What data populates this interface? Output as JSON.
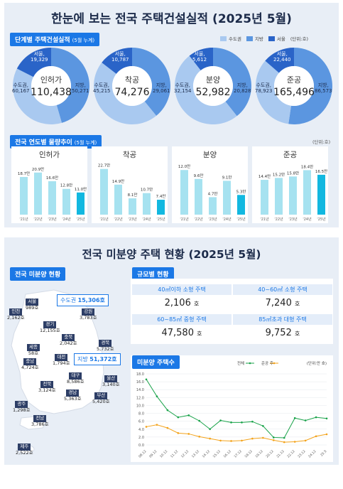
{
  "page": {
    "title": "한눈에 보는 전국 주택건설실적 (2025년 5월)",
    "section1": {
      "label": "단계별 주택건설실적",
      "note": "(5월 누계)"
    },
    "legend": [
      {
        "label": "수도권",
        "color": "#a9c9f0"
      },
      {
        "label": "지방",
        "color": "#5b96e0"
      },
      {
        "label": "서울",
        "color": "#2a64c8"
      }
    ],
    "unit1": "(단위:호)",
    "section2": {
      "label": "전국 연도별 물량추이",
      "note": "(5월 누계)"
    },
    "unit2": "(단위:호)",
    "subtitle": "전국 미분양 주택 현황 (2025년 5월)",
    "section3": {
      "label": "전국 미분양 현황"
    },
    "section4": {
      "label": "규모별 현황"
    },
    "section5": {
      "label": "미분양 주택수"
    }
  },
  "donuts": [
    {
      "name": "인허가",
      "total": "110,438",
      "metro_label": "수도권,",
      "metro": "60,167",
      "local_label": "지방,",
      "local": "50,271",
      "seoul_label": "서울,",
      "seoul": "19,329",
      "metro_v": 60167,
      "local_v": 50271,
      "seoul_v": 19329
    },
    {
      "name": "착공",
      "total": "74,276",
      "metro_label": "수도권,",
      "metro": "45,215",
      "local_label": "지방,",
      "local": "29,061",
      "seoul_label": "서울,",
      "seoul": "10,787",
      "metro_v": 45215,
      "local_v": 29061,
      "seoul_v": 10787
    },
    {
      "name": "분양",
      "total": "52,982",
      "metro_label": "수도권,",
      "metro": "32,154",
      "local_label": "지방,",
      "local": "20,828",
      "seoul_label": "서울,",
      "seoul": "5,612",
      "metro_v": 32154,
      "local_v": 20828,
      "seoul_v": 5612
    },
    {
      "name": "준공",
      "total": "165,496",
      "metro_label": "수도권,",
      "metro": "78,923",
      "local_label": "지방,",
      "local": "86,573",
      "seoul_label": "서울,",
      "seoul": "22,440",
      "metro_v": 78923,
      "local_v": 86573,
      "seoul_v": 22440
    }
  ],
  "chart_data": [
    {
      "type": "bar",
      "title": "인허가",
      "categories": [
        "'21년",
        "'22년",
        "'23년",
        "'24년",
        "'25년"
      ],
      "values": [
        18.7,
        20.9,
        16.6,
        12.8,
        11.0
      ],
      "labels": [
        "18.7만",
        "20.9만",
        "16.6만",
        "12.8만",
        "11.0만"
      ],
      "ylim": [
        0,
        24
      ]
    },
    {
      "type": "bar",
      "title": "착공",
      "categories": [
        "'21년",
        "'22년",
        "'23년",
        "'24년",
        "'25년"
      ],
      "values": [
        22.7,
        14.9,
        8.1,
        10.7,
        7.4
      ],
      "labels": [
        "22.7만",
        "14.9만",
        "8.1만",
        "10.7만",
        "7.4만"
      ],
      "ylim": [
        0,
        24
      ]
    },
    {
      "type": "bar",
      "title": "분양",
      "categories": [
        "'21년",
        "'22년",
        "'23년",
        "'24년",
        "'25년"
      ],
      "values": [
        12.0,
        9.6,
        4.7,
        9.1,
        5.3
      ],
      "labels": [
        "12.0만",
        "9.6만",
        "4.7만",
        "9.1만",
        "5.3만"
      ],
      "ylim": [
        0,
        13
      ]
    },
    {
      "type": "bar",
      "title": "준공",
      "categories": [
        "'21년",
        "'22년",
        "'23년",
        "'24년",
        "'25년"
      ],
      "values": [
        14.4,
        15.2,
        15.8,
        18.4,
        16.5
      ],
      "labels": [
        "14.4만",
        "15.2만",
        "15.8만",
        "18.4만",
        "16.5만"
      ],
      "ylim": [
        0,
        20
      ]
    },
    {
      "type": "line",
      "title": "미분양 주택수",
      "unit": "(단위:만 호)",
      "legend": [
        {
          "name": "전체",
          "color": "#1aa34a"
        },
        {
          "name": "준공 후",
          "color": "#f3a31b"
        }
      ],
      "ylim": [
        0,
        18
      ],
      "yticks": [
        0,
        2,
        4,
        6,
        8,
        10,
        12,
        14,
        16,
        18
      ],
      "yticklabels": [
        "0.0",
        "2.0",
        "4.0",
        "6.0",
        "8.0",
        "10.0",
        "12.0",
        "14.0",
        "16.0",
        "18.0"
      ],
      "xticks": [
        "08.12",
        "09.12",
        "10.12",
        "11.12",
        "12.12",
        "13.12",
        "14.12",
        "15.12",
        "16.12",
        "17.12",
        "18.12",
        "19.12",
        "20.12",
        "21.12",
        "22.12",
        "23.12",
        "24.12",
        "25.5"
      ],
      "series": [
        {
          "name": "전체",
          "values": [
            16.6,
            12.3,
            8.8,
            7.0,
            7.5,
            6.1,
            4.0,
            6.2,
            5.7,
            5.7,
            5.9,
            4.8,
            1.9,
            1.8,
            6.8,
            6.2,
            7.0,
            6.7
          ]
        },
        {
          "name": "준공 후",
          "values": [
            4.6,
            5.1,
            4.3,
            3.0,
            2.8,
            2.1,
            1.6,
            1.1,
            1.0,
            1.1,
            1.6,
            1.8,
            1.2,
            0.7,
            0.8,
            1.1,
            2.2,
            2.7
          ]
        }
      ]
    }
  ],
  "regions": [
    {
      "name": "서울",
      "value": "989호"
    },
    {
      "name": "인천",
      "value": "2,162호"
    },
    {
      "name": "경기",
      "value": "12,155호"
    },
    {
      "name": "강원",
      "value": "3,783호"
    },
    {
      "name": "충북",
      "value": "2,042호"
    },
    {
      "name": "세종",
      "value": "58호"
    },
    {
      "name": "경북",
      "value": "5,732호"
    },
    {
      "name": "충남",
      "value": "4,724호"
    },
    {
      "name": "대전",
      "value": "1,794호"
    },
    {
      "name": "전북",
      "value": "3,124호"
    },
    {
      "name": "대구",
      "value": "8,586호"
    },
    {
      "name": "울산",
      "value": "3,140호"
    },
    {
      "name": "경남",
      "value": "5,363호"
    },
    {
      "name": "광주",
      "value": "1,298호"
    },
    {
      "name": "부산",
      "value": "5,420호"
    },
    {
      "name": "전남",
      "value": "3,786호"
    },
    {
      "name": "제주",
      "value": "2,522호"
    }
  ],
  "callouts": {
    "metro_label": "수도권",
    "metro": "15,306호",
    "local_label": "지방",
    "local": "51,372호"
  },
  "scale": [
    {
      "label": "40㎡이하 소형 주택",
      "value": "2,106",
      "unit": "호"
    },
    {
      "label": "40~60㎡ 소형 주택",
      "value": "7,240",
      "unit": "호"
    },
    {
      "label": "60~85㎡ 중형 주택",
      "value": "47,580",
      "unit": "호"
    },
    {
      "label": "85㎡초과 대형 주택",
      "value": "9,752",
      "unit": "호"
    }
  ]
}
